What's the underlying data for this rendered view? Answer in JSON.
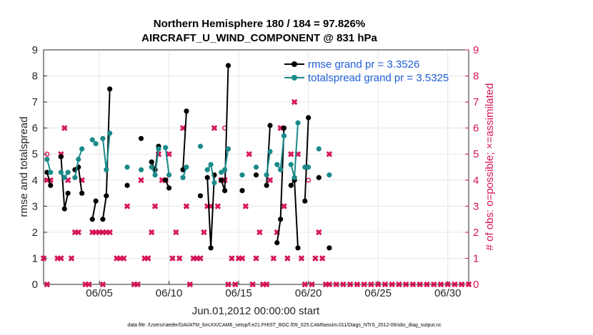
{
  "chart_data": {
    "type": "line",
    "title": "Northern Hemisphere 180 / 184 = 97.826%",
    "subtitle": "AIRCRAFT_U_WIND_COMPONENT @ 831 hPa",
    "xlabel": "Jun.01,2012 00:00:00 start",
    "ylabel": "rmse and totalspread",
    "ylabel_right": "# of obs: o=possible; ×=assimilated",
    "footnote": "data file: /Users/raeder/DAI/ATM_forcXX/CAM6_setup/f.e21.FHIST_BGC.f09_025.CAM6assim.011/Diags_NTrS_2012-06/obs_diag_output.nc",
    "xlim": [
      1,
      31.5
    ],
    "ylim": [
      0,
      9
    ],
    "ylim_right": [
      0,
      9
    ],
    "yticks": [
      "0",
      "1",
      "2",
      "3",
      "4",
      "5",
      "6",
      "7",
      "8",
      "9"
    ],
    "xticks": [
      {
        "day": 5,
        "label": "06/05"
      },
      {
        "day": 10,
        "label": "06/10"
      },
      {
        "day": 15,
        "label": "06/15"
      },
      {
        "day": 20,
        "label": "06/20"
      },
      {
        "day": 25,
        "label": "06/25"
      },
      {
        "day": 30,
        "label": "06/30"
      }
    ],
    "series": [
      {
        "name": "rmse grand pr = 3.3526",
        "color": "#000000",
        "segments": [
          [
            [
              1.25,
              4.3
            ],
            [
              1.5,
              3.8
            ]
          ],
          [
            [
              2.25,
              4.9
            ],
            [
              2.5,
              2.9
            ],
            [
              2.75,
              3.5
            ]
          ],
          [
            [
              3.25,
              4.4
            ],
            [
              3.5,
              4.5
            ],
            [
              3.75,
              3.5
            ]
          ],
          [
            [
              4.5,
              2.5
            ],
            [
              4.75,
              3.2
            ]
          ],
          [
            [
              5.25,
              2.5
            ],
            [
              5.5,
              3.4
            ],
            [
              5.75,
              7.5
            ]
          ],
          [
            [
              7.0,
              3.8
            ]
          ],
          [
            [
              8.0,
              5.6
            ]
          ],
          [
            [
              8.75,
              4.7
            ],
            [
              9.0,
              4.4
            ],
            [
              9.25,
              5.3
            ]
          ],
          [
            [
              9.75,
              4.0
            ],
            [
              10.0,
              3.7
            ]
          ],
          [
            [
              11.0,
              4.4
            ],
            [
              11.25,
              6.65
            ]
          ],
          [
            [
              12.25,
              3.4
            ]
          ],
          [
            [
              12.75,
              4.1
            ],
            [
              13.0,
              1.4
            ],
            [
              13.25,
              4.2
            ]
          ],
          [
            [
              13.75,
              4.0
            ],
            [
              14.0,
              3.6
            ],
            [
              14.25,
              8.4
            ]
          ],
          [
            [
              15.25,
              3.6
            ]
          ],
          [
            [
              16.25,
              4.2
            ]
          ],
          [
            [
              17.0,
              3.8
            ],
            [
              17.25,
              6.1
            ]
          ],
          [
            [
              17.75,
              1.6
            ],
            [
              18.0,
              2.5
            ],
            [
              18.25,
              6.0
            ]
          ],
          [
            [
              18.75,
              3.8
            ],
            [
              19.0,
              4.0
            ],
            [
              19.25,
              1.4
            ]
          ],
          [
            [
              19.75,
              3.2
            ],
            [
              20.0,
              6.4
            ]
          ],
          [
            [
              20.75,
              4.1
            ]
          ],
          [
            [
              21.5,
              1.4
            ]
          ]
        ]
      },
      {
        "name": "totalspread grand pr = 3.5325",
        "color": "#1b8a8a",
        "segments": [
          [
            [
              1.25,
              4.8
            ],
            [
              1.5,
              4.3
            ]
          ],
          [
            [
              2.25,
              4.3
            ],
            [
              2.5,
              4.1
            ],
            [
              2.75,
              4.3
            ]
          ],
          [
            [
              3.25,
              4.1
            ],
            [
              3.5,
              4.8
            ],
            [
              3.75,
              5.2
            ]
          ],
          [
            [
              4.5,
              5.55
            ],
            [
              4.75,
              5.4
            ]
          ],
          [
            [
              5.25,
              5.6
            ],
            [
              5.5,
              4.4
            ],
            [
              5.75,
              5.8
            ]
          ],
          [
            [
              7.0,
              4.5
            ]
          ],
          [
            [
              8.0,
              4.4
            ]
          ],
          [
            [
              8.75,
              4.5
            ],
            [
              9.0,
              4.2
            ],
            [
              9.25,
              5.2
            ]
          ],
          [
            [
              9.75,
              5.25
            ],
            [
              10.0,
              4.2
            ]
          ],
          [
            [
              11.0,
              4.1
            ],
            [
              11.25,
              4.5
            ]
          ],
          [
            [
              12.25,
              5.3
            ]
          ],
          [
            [
              12.75,
              4.4
            ],
            [
              13.0,
              4.6
            ],
            [
              13.25,
              3.9
            ]
          ],
          [
            [
              13.75,
              4.3
            ],
            [
              14.0,
              4.4
            ],
            [
              14.25,
              5.2
            ]
          ],
          [
            [
              15.25,
              4.2
            ]
          ],
          [
            [
              16.25,
              4.5
            ]
          ],
          [
            [
              17.0,
              4.2
            ],
            [
              17.25,
              5.1
            ]
          ],
          [
            [
              17.75,
              4.6
            ],
            [
              18.0,
              4.4
            ],
            [
              18.25,
              5.7
            ]
          ],
          [
            [
              18.75,
              4.6
            ],
            [
              19.0,
              4.1
            ],
            [
              19.25,
              6.2
            ]
          ],
          [
            [
              19.75,
              4.5
            ],
            [
              20.0,
              4.5
            ]
          ],
          [
            [
              20.75,
              5.2
            ]
          ],
          [
            [
              21.5,
              4.2
            ]
          ]
        ]
      }
    ],
    "obs_possible": [
      [
        1.25,
        5
      ],
      [
        14.0,
        6
      ],
      [
        20.0,
        4
      ]
    ],
    "obs_assimilated": [
      [
        1.0,
        1
      ],
      [
        1.25,
        0
      ],
      [
        1.25,
        4
      ],
      [
        1.5,
        4
      ],
      [
        2.0,
        1
      ],
      [
        2.25,
        1
      ],
      [
        2.25,
        5
      ],
      [
        2.5,
        6
      ],
      [
        2.75,
        4
      ],
      [
        3.0,
        1
      ],
      [
        3.25,
        2
      ],
      [
        3.5,
        2
      ],
      [
        3.75,
        4
      ],
      [
        4.0,
        0
      ],
      [
        4.25,
        0
      ],
      [
        4.5,
        2
      ],
      [
        4.75,
        2
      ],
      [
        5.0,
        2
      ],
      [
        5.25,
        0
      ],
      [
        5.25,
        2
      ],
      [
        5.5,
        2
      ],
      [
        5.75,
        2
      ],
      [
        6.25,
        1
      ],
      [
        6.5,
        1
      ],
      [
        6.75,
        1
      ],
      [
        7.0,
        3
      ],
      [
        7.5,
        0
      ],
      [
        7.75,
        0
      ],
      [
        8.0,
        4
      ],
      [
        8.25,
        1
      ],
      [
        8.5,
        1
      ],
      [
        8.75,
        2
      ],
      [
        9.0,
        3
      ],
      [
        9.25,
        5
      ],
      [
        9.5,
        4
      ],
      [
        9.75,
        4
      ],
      [
        10.0,
        5
      ],
      [
        10.25,
        1
      ],
      [
        10.5,
        2
      ],
      [
        10.75,
        1
      ],
      [
        11.0,
        6
      ],
      [
        11.25,
        3
      ],
      [
        11.5,
        0
      ],
      [
        11.75,
        1
      ],
      [
        12.0,
        1
      ],
      [
        12.25,
        1
      ],
      [
        12.5,
        2
      ],
      [
        12.75,
        3
      ],
      [
        13.0,
        3
      ],
      [
        13.25,
        6
      ],
      [
        13.5,
        3
      ],
      [
        13.75,
        4
      ],
      [
        14.0,
        4
      ],
      [
        14.25,
        0
      ],
      [
        14.5,
        1
      ],
      [
        14.75,
        0
      ],
      [
        15.0,
        1
      ],
      [
        15.25,
        1
      ],
      [
        15.5,
        3
      ],
      [
        15.75,
        5
      ],
      [
        16.0,
        0
      ],
      [
        16.25,
        1
      ],
      [
        16.5,
        2
      ],
      [
        16.75,
        0
      ],
      [
        17.0,
        0
      ],
      [
        17.25,
        4
      ],
      [
        17.5,
        1
      ],
      [
        17.75,
        2
      ],
      [
        18.0,
        6
      ],
      [
        18.25,
        3
      ],
      [
        18.5,
        1
      ],
      [
        18.75,
        5
      ],
      [
        19.0,
        7
      ],
      [
        19.25,
        5
      ],
      [
        19.5,
        1
      ],
      [
        19.75,
        0
      ],
      [
        20.25,
        0
      ],
      [
        20.5,
        1
      ],
      [
        20.75,
        2
      ],
      [
        21.0,
        1
      ],
      [
        21.25,
        0
      ],
      [
        21.5,
        5
      ],
      [
        21.5,
        0
      ],
      [
        22.0,
        0
      ],
      [
        22.5,
        0
      ],
      [
        23.0,
        0
      ],
      [
        23.5,
        0
      ],
      [
        24.0,
        0
      ],
      [
        24.5,
        0
      ],
      [
        25.0,
        0
      ],
      [
        25.5,
        0
      ],
      [
        26.0,
        0
      ],
      [
        26.5,
        0
      ],
      [
        27.0,
        0
      ],
      [
        27.5,
        0
      ],
      [
        28.0,
        0
      ],
      [
        28.5,
        0
      ],
      [
        29.0,
        0
      ],
      [
        29.5,
        0
      ],
      [
        30.0,
        0
      ],
      [
        30.5,
        0
      ],
      [
        31.0,
        0
      ],
      [
        31.5,
        0
      ]
    ],
    "colors": {
      "rmse": "#000000",
      "spread": "#1b8a8a",
      "obs": "#d6145a",
      "legend_text": "#1f5fd6",
      "grid": "#e6e6e6"
    },
    "grid": true,
    "legend_position": "top-right"
  }
}
